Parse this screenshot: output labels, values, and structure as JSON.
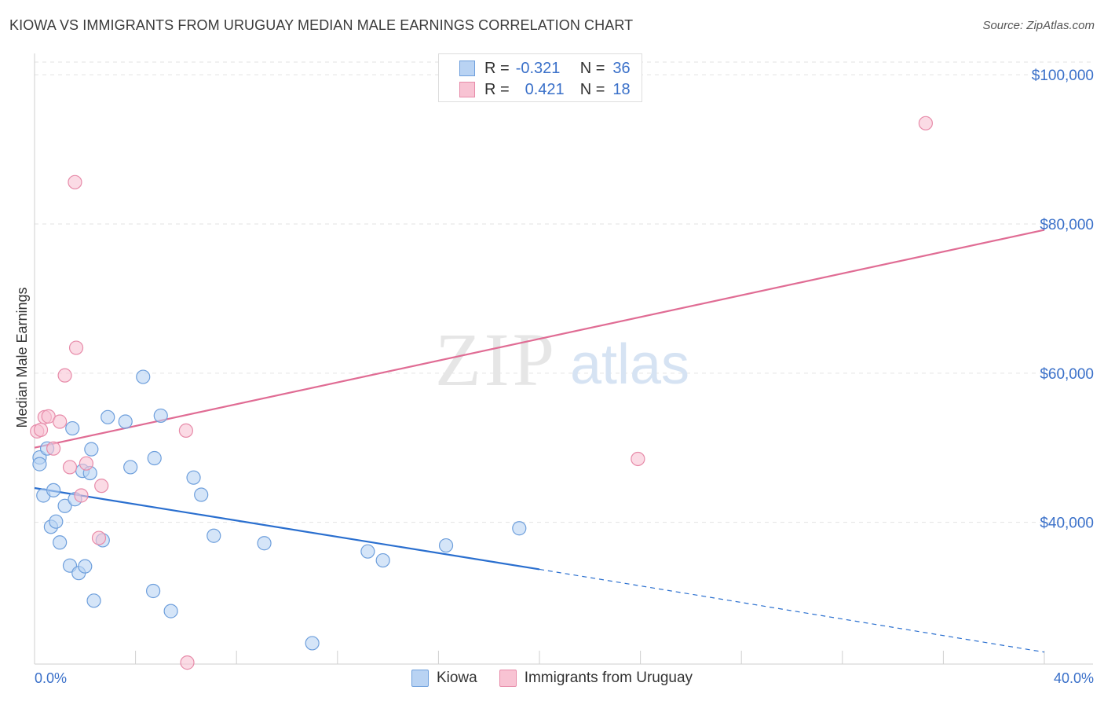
{
  "title": "KIOWA VS IMMIGRANTS FROM URUGUAY MEDIAN MALE EARNINGS CORRELATION CHART",
  "source": "Source: ZipAtlas.com",
  "watermark": {
    "zip": "ZIP",
    "atlas": "atlas"
  },
  "legend": {
    "rows": [
      {
        "r_label": "R =",
        "r_value": "-0.321",
        "n_label": "N =",
        "n_value": "36"
      },
      {
        "r_label": "R =",
        "r_value": "0.421",
        "n_label": "N =",
        "n_value": "18"
      }
    ]
  },
  "colors": {
    "kiowa_fill": "#b9d3f3",
    "kiowa_stroke": "#6e9fdc",
    "kiowa_line": "#2a6fcf",
    "uruguay_fill": "#f8c3d3",
    "uruguay_stroke": "#e78ba9",
    "uruguay_line": "#e06c94",
    "axis_label": "#3a70c9"
  },
  "chart_data": {
    "type": "scatter",
    "xlabel": "",
    "ylabel": "Median Male Earnings",
    "x_tick_labels": [
      "0.0%",
      "40.0%"
    ],
    "y_tick_labels": [
      "$40,000",
      "$60,000",
      "$80,000",
      "$100,000"
    ],
    "xlim": [
      0,
      40
    ],
    "ylim": [
      21000,
      102000
    ],
    "grid": true,
    "legend_position": "top-center",
    "series": [
      {
        "name": "Kiowa",
        "points": [
          [
            0.2,
            48.7
          ],
          [
            0.2,
            47.8
          ],
          [
            0.35,
            43.6
          ],
          [
            0.5,
            49.9
          ],
          [
            0.65,
            39.4
          ],
          [
            0.75,
            44.3
          ],
          [
            0.85,
            40.1
          ],
          [
            1.0,
            37.3
          ],
          [
            1.2,
            42.2
          ],
          [
            1.4,
            34.2
          ],
          [
            1.5,
            52.6
          ],
          [
            1.6,
            43.1
          ],
          [
            1.75,
            33.2
          ],
          [
            1.9,
            46.9
          ],
          [
            2.0,
            34.1
          ],
          [
            2.2,
            46.6
          ],
          [
            2.25,
            49.8
          ],
          [
            2.35,
            29.5
          ],
          [
            2.7,
            37.6
          ],
          [
            2.9,
            54.1
          ],
          [
            3.6,
            53.5
          ],
          [
            3.8,
            47.4
          ],
          [
            4.3,
            59.5
          ],
          [
            4.7,
            30.8
          ],
          [
            4.75,
            48.6
          ],
          [
            5.0,
            54.3
          ],
          [
            5.4,
            28.1
          ],
          [
            6.3,
            46.0
          ],
          [
            6.6,
            43.7
          ],
          [
            7.1,
            38.2
          ],
          [
            9.1,
            37.2
          ],
          [
            11.0,
            23.8
          ],
          [
            13.2,
            36.1
          ],
          [
            13.8,
            34.9
          ],
          [
            16.3,
            36.9
          ],
          [
            19.2,
            39.2
          ]
        ]
      },
      {
        "name": "Immigrants from Uruguay",
        "points": [
          [
            0.1,
            52.2
          ],
          [
            0.25,
            52.4
          ],
          [
            0.4,
            54.1
          ],
          [
            0.55,
            54.2
          ],
          [
            0.75,
            49.9
          ],
          [
            1.0,
            53.5
          ],
          [
            1.2,
            59.7
          ],
          [
            1.4,
            47.4
          ],
          [
            1.6,
            85.6
          ],
          [
            1.65,
            63.4
          ],
          [
            1.85,
            43.6
          ],
          [
            2.05,
            47.9
          ],
          [
            2.55,
            37.9
          ],
          [
            2.65,
            44.9
          ],
          [
            6.0,
            52.3
          ],
          [
            6.05,
            21.2
          ],
          [
            23.9,
            48.5
          ],
          [
            35.3,
            93.5
          ]
        ]
      }
    ],
    "trend_lines": [
      {
        "series": "Kiowa",
        "x": [
          0,
          20
        ],
        "y": [
          44.6,
          33.7
        ],
        "dashed_extension_to_x": 40,
        "dashed_end_y": 22.6
      },
      {
        "series": "Immigrants from Uruguay",
        "x": [
          0,
          40
        ],
        "y": [
          50.0,
          79.2
        ]
      }
    ]
  },
  "bottom_legend": [
    {
      "label": "Kiowa"
    },
    {
      "label": "Immigrants from Uruguay"
    }
  ]
}
